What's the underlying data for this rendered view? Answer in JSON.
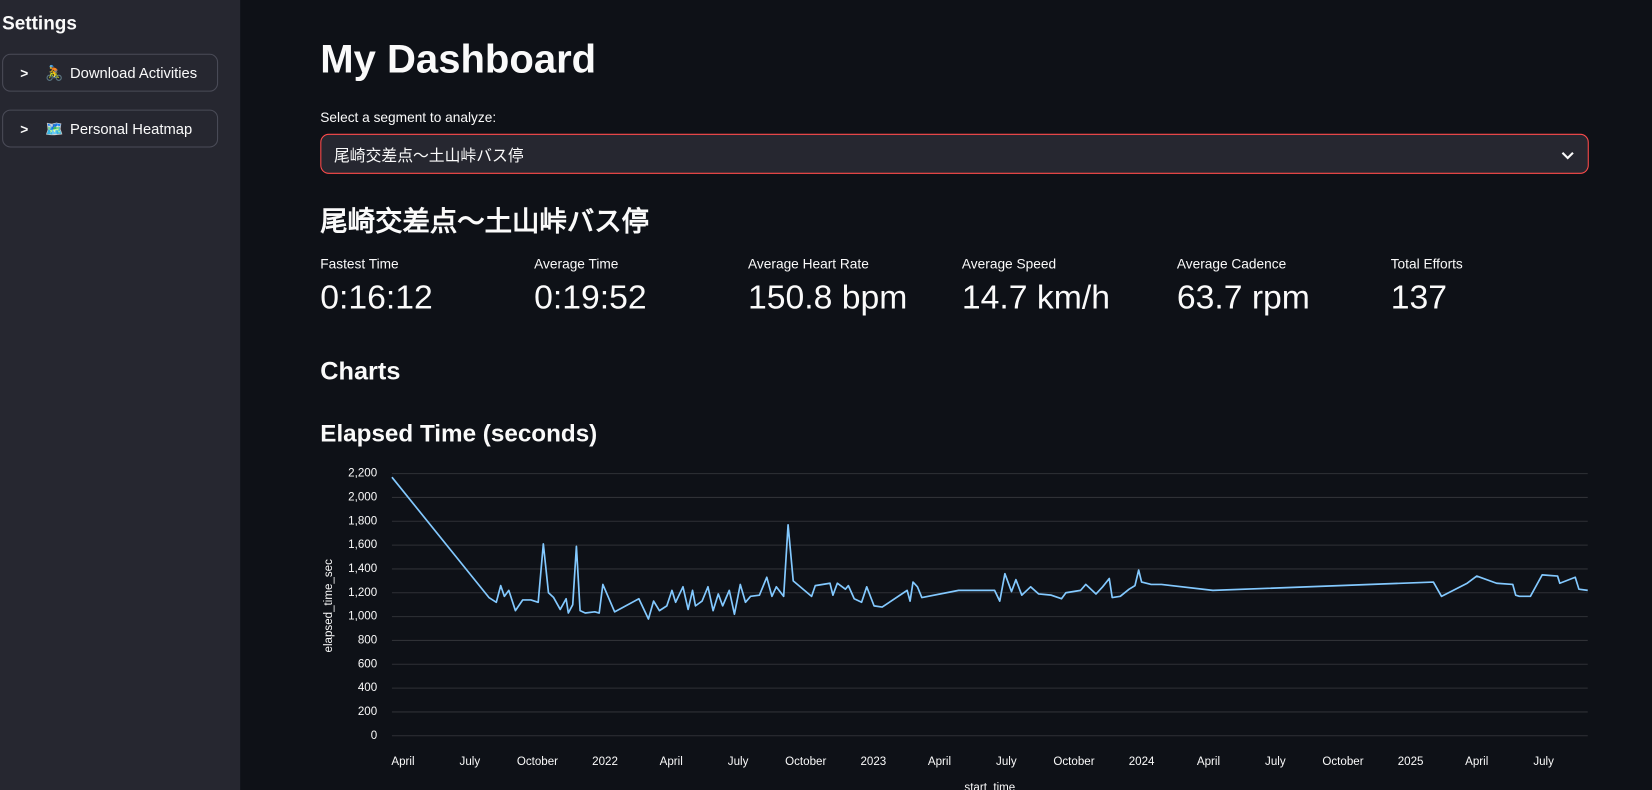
{
  "sidebar": {
    "title": "Settings",
    "expanders": [
      {
        "icon": "🚴",
        "label": "Download Activities"
      },
      {
        "icon": "🗺️",
        "label": "Personal Heatmap"
      }
    ]
  },
  "header": {
    "title": "My Dashboard"
  },
  "segment_select": {
    "label": "Select a segment to analyze:",
    "value": "尾崎交差点〜土山峠バス停"
  },
  "segment": {
    "title": "尾崎交差点〜土山峠バス停",
    "metrics": [
      {
        "label": "Fastest Time",
        "value": "0:16:12"
      },
      {
        "label": "Average Time",
        "value": "0:19:52"
      },
      {
        "label": "Average Heart Rate",
        "value": "150.8 bpm"
      },
      {
        "label": "Average Speed",
        "value": "14.7 km/h"
      },
      {
        "label": "Average Cadence",
        "value": "63.7 rpm"
      },
      {
        "label": "Total Efforts",
        "value": "137"
      }
    ]
  },
  "charts_heading": "Charts",
  "chart_data": {
    "type": "line",
    "title": "Elapsed Time (seconds)",
    "x_label": "start_time",
    "y_label": "elapsed_time_sec",
    "color": "#83c9ff",
    "grid": true,
    "x": [
      "2021-03-17",
      "2021-07-27",
      "2021-08-06",
      "2021-08-12",
      "2021-08-17",
      "2021-08-23",
      "2021-09-01",
      "2021-09-11",
      "2021-09-22",
      "2021-10-02",
      "2021-10-09",
      "2021-10-16",
      "2021-10-23",
      "2021-11-01",
      "2021-11-09",
      "2021-11-12",
      "2021-11-18",
      "2021-11-23",
      "2021-11-28",
      "2021-12-05",
      "2021-12-18",
      "2021-12-24",
      "2021-12-29",
      "2022-01-14",
      "2022-02-16",
      "2022-03-01",
      "2022-03-08",
      "2022-03-16",
      "2022-03-26",
      "2022-04-02",
      "2022-04-07",
      "2022-04-17",
      "2022-04-24",
      "2022-04-30",
      "2022-05-04",
      "2022-05-13",
      "2022-05-21",
      "2022-05-28",
      "2022-06-04",
      "2022-06-10",
      "2022-06-19",
      "2022-06-26",
      "2022-07-04",
      "2022-07-11",
      "2022-07-18",
      "2022-07-30",
      "2022-08-09",
      "2022-08-16",
      "2022-08-22",
      "2022-09-01",
      "2022-09-07",
      "2022-09-14",
      "2022-10-09",
      "2022-10-14",
      "2022-11-03",
      "2022-11-07",
      "2022-11-13",
      "2022-11-24",
      "2022-11-28",
      "2022-12-06",
      "2022-12-16",
      "2022-12-23",
      "2023-01-02",
      "2023-01-13",
      "2023-02-16",
      "2023-02-20",
      "2023-02-24",
      "2023-03-02",
      "2023-03-08",
      "2023-04-27",
      "2023-06-15",
      "2023-06-22",
      "2023-06-29",
      "2023-07-08",
      "2023-07-14",
      "2023-07-22",
      "2023-08-03",
      "2023-08-14",
      "2023-08-31",
      "2023-09-14",
      "2023-09-20",
      "2023-10-10",
      "2023-10-17",
      "2023-10-31",
      "2023-11-09",
      "2023-11-18",
      "2023-11-22",
      "2023-12-03",
      "2023-12-15",
      "2023-12-23",
      "2023-12-28",
      "2024-01-01",
      "2024-01-14",
      "2024-01-28",
      "2024-04-07",
      "2025-02-01",
      "2025-02-12",
      "2025-03-19",
      "2025-04-01",
      "2025-04-28",
      "2025-05-20",
      "2025-05-24",
      "2025-05-29",
      "2025-06-13",
      "2025-06-29",
      "2025-07-20",
      "2025-07-23",
      "2025-08-13",
      "2025-08-18",
      "2025-08-30"
    ],
    "values": [
      2170,
      1160,
      1120,
      1260,
      1170,
      1220,
      1050,
      1140,
      1140,
      1120,
      1610,
      1200,
      1160,
      1060,
      1150,
      1030,
      1100,
      1590,
      1050,
      1030,
      1040,
      1030,
      1270,
      1040,
      1150,
      980,
      1130,
      1050,
      1090,
      1220,
      1120,
      1250,
      1060,
      1220,
      1090,
      1130,
      1250,
      1050,
      1190,
      1090,
      1220,
      1020,
      1270,
      1120,
      1170,
      1180,
      1330,
      1170,
      1250,
      1170,
      1770,
      1300,
      1170,
      1260,
      1280,
      1180,
      1280,
      1230,
      1260,
      1150,
      1120,
      1250,
      1090,
      1080,
      1220,
      1130,
      1290,
      1250,
      1160,
      1220,
      1220,
      1130,
      1360,
      1210,
      1310,
      1180,
      1250,
      1190,
      1180,
      1150,
      1200,
      1220,
      1270,
      1190,
      1250,
      1320,
      1160,
      1170,
      1230,
      1260,
      1390,
      1290,
      1270,
      1270,
      1220,
      1290,
      1170,
      1280,
      1340,
      1280,
      1270,
      1180,
      1170,
      1170,
      1350,
      1340,
      1280,
      1330,
      1230,
      1220
    ],
    "xlim": [
      "2021-03-17",
      "2025-08-30"
    ],
    "xticks": [
      {
        "value": "2021-04-01",
        "label": "April"
      },
      {
        "value": "2021-07-01",
        "label": "July"
      },
      {
        "value": "2021-10-01",
        "label": "October"
      },
      {
        "value": "2022-01-01",
        "label": "2022"
      },
      {
        "value": "2022-04-01",
        "label": "April"
      },
      {
        "value": "2022-07-01",
        "label": "July"
      },
      {
        "value": "2022-10-01",
        "label": "October"
      },
      {
        "value": "2023-01-01",
        "label": "2023"
      },
      {
        "value": "2023-04-01",
        "label": "April"
      },
      {
        "value": "2023-07-01",
        "label": "July"
      },
      {
        "value": "2023-10-01",
        "label": "October"
      },
      {
        "value": "2024-01-01",
        "label": "2024"
      },
      {
        "value": "2024-04-01",
        "label": "April"
      },
      {
        "value": "2024-07-01",
        "label": "July"
      },
      {
        "value": "2024-10-01",
        "label": "October"
      },
      {
        "value": "2025-01-01",
        "label": "2025"
      },
      {
        "value": "2025-04-01",
        "label": "April"
      },
      {
        "value": "2025-07-01",
        "label": "July"
      }
    ],
    "ylim": [
      -50,
      2240
    ],
    "yticks": [
      0,
      200,
      400,
      600,
      800,
      {
        "value": 1000,
        "label": "1,000"
      },
      {
        "value": 1200,
        "label": "1,200"
      },
      {
        "value": 1400,
        "label": "1,400"
      },
      {
        "value": 1600,
        "label": "1,600"
      },
      {
        "value": 1800,
        "label": "1,800"
      },
      {
        "value": 2000,
        "label": "2,000"
      },
      {
        "value": 2200,
        "label": "2,200"
      }
    ]
  }
}
